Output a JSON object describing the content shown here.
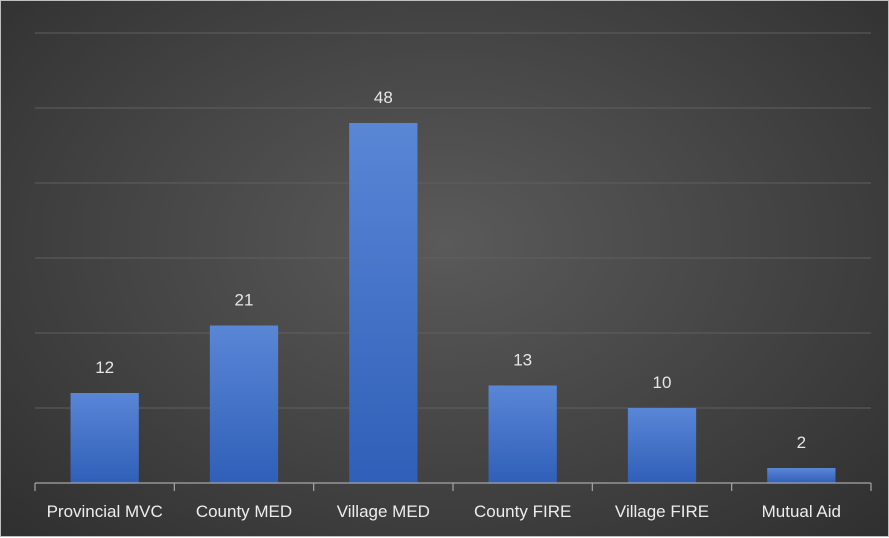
{
  "chart_data": {
    "type": "bar",
    "title": "",
    "xlabel": "",
    "ylabel": "",
    "categories": [
      "Provincial MVC",
      "County MED",
      "Village MED",
      "County FIRE",
      "Village FIRE",
      "Mutual Aid"
    ],
    "values": [
      12,
      21,
      48,
      13,
      10,
      2
    ],
    "data_labels": [
      "12",
      "21",
      "48",
      "13",
      "10",
      "2"
    ],
    "ylim": [
      0,
      60
    ],
    "gridlines": true,
    "legend": "none",
    "colors": {
      "bar_top": "#5a86d6",
      "bar_bottom": "#2f5fb8",
      "grid": "#5f5f5f",
      "axis": "#a6a6a6",
      "text": "#e6e6e6"
    }
  }
}
